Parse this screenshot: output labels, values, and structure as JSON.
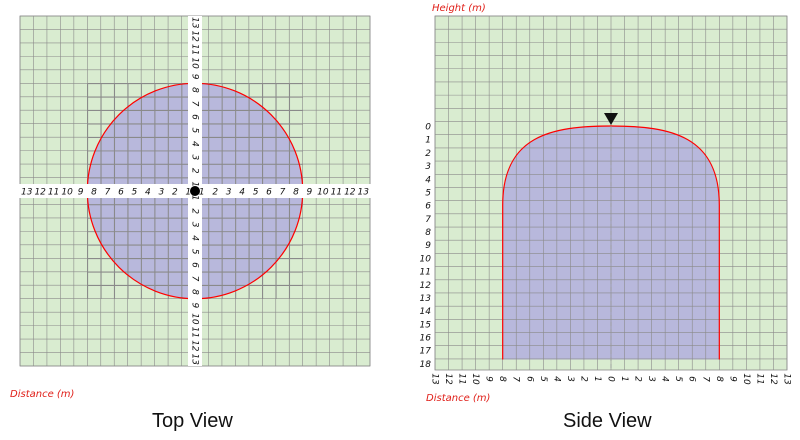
{
  "colors": {
    "grid_bg": "#d9ecd0",
    "grid_line": "#8a8a8a",
    "coverage_fill": "#b8b8dc",
    "coverage_outline": "#ff0000",
    "axis_name_color": "#e0201a",
    "tick_color": "#111111"
  },
  "top_view": {
    "caption": "Top View",
    "distance_label": "Distance (m)",
    "axis_min": -13,
    "axis_max": 13,
    "radius_m": 8,
    "horizontal_ticks": [
      13,
      12,
      11,
      10,
      9,
      8,
      7,
      6,
      5,
      4,
      3,
      2,
      1,
      1,
      2,
      3,
      4,
      5,
      6,
      7,
      8,
      9,
      10,
      11,
      12,
      13
    ],
    "vertical_ticks": [
      13,
      12,
      11,
      10,
      9,
      8,
      7,
      6,
      5,
      4,
      3,
      2,
      1,
      1,
      2,
      3,
      4,
      5,
      6,
      7,
      8,
      9,
      10,
      11,
      12,
      13
    ],
    "center_marker": "sensor-dot"
  },
  "side_view": {
    "caption": "Side View",
    "height_label": "Height (m)",
    "distance_label": "Distance (m)",
    "x_ticks": [
      13,
      12,
      11,
      10,
      9,
      8,
      7,
      6,
      5,
      4,
      3,
      2,
      1,
      0,
      1,
      2,
      3,
      4,
      5,
      6,
      7,
      8,
      9,
      10,
      11,
      12,
      13
    ],
    "y_ticks": [
      0,
      1,
      2,
      3,
      4,
      5,
      6,
      7,
      8,
      9,
      10,
      11,
      12,
      13,
      14,
      15,
      16,
      17,
      18
    ],
    "x_min": -13,
    "x_max": 13,
    "height_min": 0,
    "height_max": 18,
    "coverage_half_width_m": 8,
    "dome_end_height_m": 6,
    "coverage_bottom_m": 18,
    "sensor_marker": "down-triangle"
  }
}
